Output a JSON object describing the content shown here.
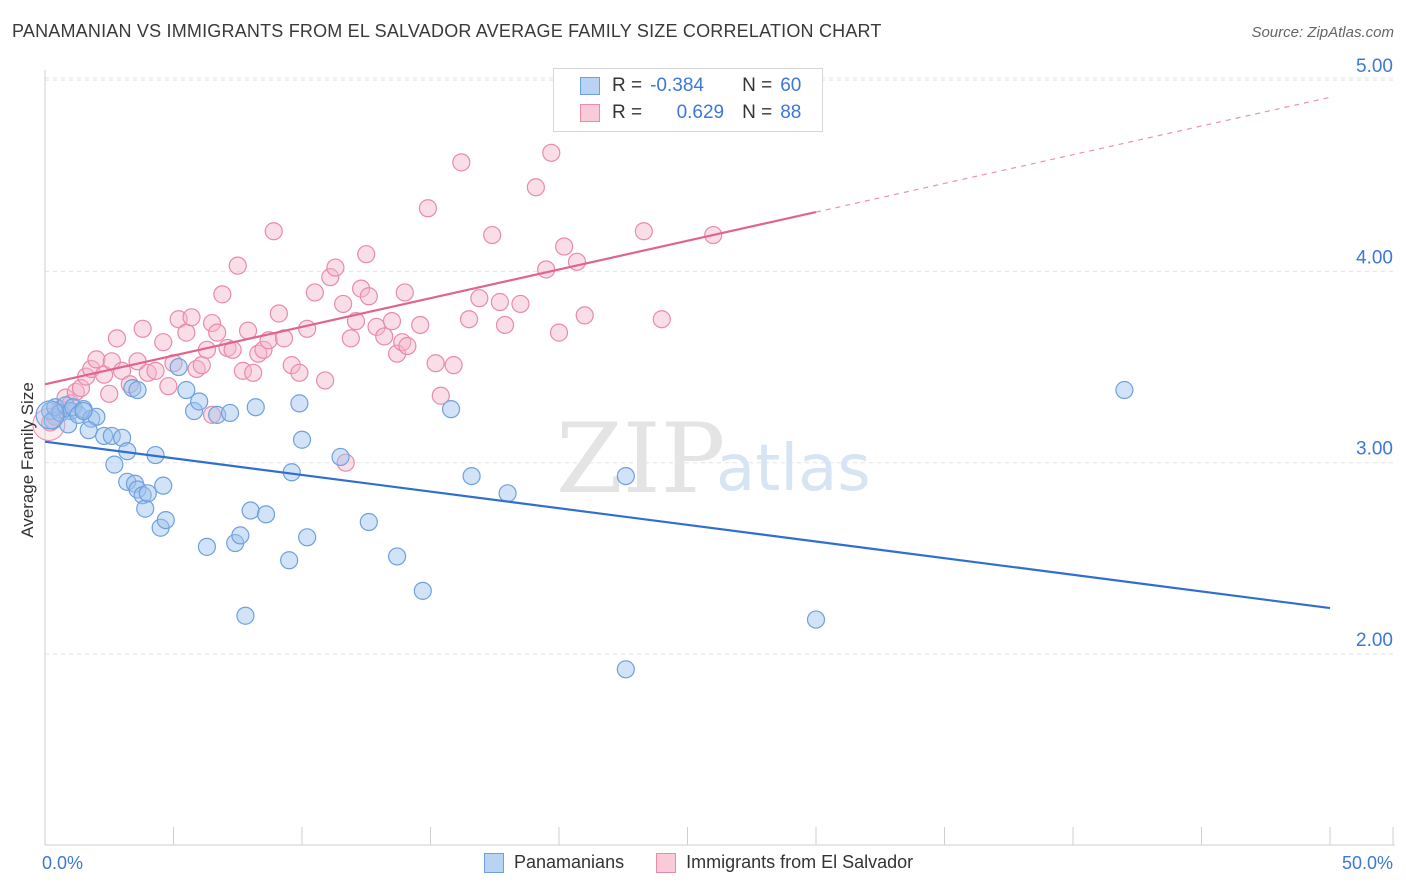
{
  "title": "PANAMANIAN VS IMMIGRANTS FROM EL SALVADOR AVERAGE FAMILY SIZE CORRELATION CHART",
  "source": "Source: ZipAtlas.com",
  "watermark": {
    "zip": "ZIP",
    "atlas": "atlas"
  },
  "legend": {
    "rows": [
      {
        "r_label": "R =",
        "r_value": "-0.384",
        "n_label": "N =",
        "n_value": "60"
      },
      {
        "r_label": "R =",
        "r_value": "0.629",
        "n_label": "N =",
        "n_value": "88"
      }
    ]
  },
  "bottom_legend": {
    "s0": "Panamanians",
    "s1": "Immigrants from El Salvador"
  },
  "colors": {
    "blue_fill": "#9cc2ee",
    "blue_stroke": "#6fa0dd",
    "blue_line": "#2e6fd0",
    "pink_fill": "#f5b6ca",
    "pink_stroke": "#e98aa9",
    "pink_line": "#e0648f",
    "tick_text": "#3c78d8",
    "grid": "#e3e3e3"
  },
  "chart_data": {
    "type": "scatter",
    "title": "PANAMANIAN VS IMMIGRANTS FROM EL SALVADOR AVERAGE FAMILY SIZE CORRELATION CHART",
    "xlabel": "",
    "ylabel": "Average Family Size",
    "xlim": [
      0,
      50
    ],
    "ylim": [
      1.0,
      5.25
    ],
    "x_ticks": [
      "0.0%",
      "50.0%"
    ],
    "y_ticks": [
      {
        "value": 2.0,
        "label": "2.00"
      },
      {
        "value": 3.0,
        "label": "3.00"
      },
      {
        "value": 4.0,
        "label": "4.00"
      },
      {
        "value": 5.0,
        "label": "5.00"
      }
    ],
    "grid": true,
    "legend_position": "top-center",
    "series": [
      {
        "name": "Panamanians",
        "color": "#9cc2ee",
        "trend": {
          "x0": 0,
          "y0": 3.11,
          "x1": 50,
          "y1": 2.24
        },
        "points": [
          [
            0.2,
            3.27
          ],
          [
            0.3,
            3.22
          ],
          [
            0.4,
            3.29
          ],
          [
            0.6,
            3.26
          ],
          [
            0.8,
            3.3
          ],
          [
            1.0,
            3.27
          ],
          [
            1.1,
            3.29
          ],
          [
            0.9,
            3.2
          ],
          [
            1.3,
            3.25
          ],
          [
            1.5,
            3.28
          ],
          [
            1.8,
            3.23
          ],
          [
            2.0,
            3.24
          ],
          [
            2.3,
            3.14
          ],
          [
            1.7,
            3.17
          ],
          [
            2.6,
            3.14
          ],
          [
            3.0,
            3.13
          ],
          [
            2.7,
            2.99
          ],
          [
            3.2,
            2.9
          ],
          [
            3.5,
            2.89
          ],
          [
            3.6,
            2.86
          ],
          [
            3.8,
            2.83
          ],
          [
            3.9,
            2.76
          ],
          [
            4.0,
            2.84
          ],
          [
            3.2,
            3.06
          ],
          [
            4.3,
            3.04
          ],
          [
            4.5,
            2.66
          ],
          [
            4.6,
            2.88
          ],
          [
            4.7,
            2.7
          ],
          [
            3.4,
            3.39
          ],
          [
            5.2,
            3.5
          ],
          [
            5.5,
            3.38
          ],
          [
            5.8,
            3.27
          ],
          [
            6.0,
            3.32
          ],
          [
            6.3,
            2.56
          ],
          [
            6.7,
            3.25
          ],
          [
            7.2,
            3.26
          ],
          [
            7.4,
            2.58
          ],
          [
            7.6,
            2.62
          ],
          [
            7.8,
            2.2
          ],
          [
            8.0,
            2.75
          ],
          [
            8.2,
            3.29
          ],
          [
            8.6,
            2.73
          ],
          [
            9.5,
            2.49
          ],
          [
            9.6,
            2.95
          ],
          [
            9.9,
            3.31
          ],
          [
            10.0,
            3.12
          ],
          [
            10.2,
            2.61
          ],
          [
            11.5,
            3.03
          ],
          [
            12.6,
            2.69
          ],
          [
            13.7,
            2.51
          ],
          [
            14.7,
            2.33
          ],
          [
            15.8,
            3.28
          ],
          [
            16.6,
            2.93
          ],
          [
            18.0,
            2.84
          ],
          [
            22.6,
            1.92
          ],
          [
            22.6,
            2.93
          ],
          [
            30.0,
            2.18
          ],
          [
            42.0,
            3.38
          ],
          [
            3.6,
            3.38
          ],
          [
            1.5,
            3.27
          ]
        ]
      },
      {
        "name": "Immigrants from El Salvador",
        "color": "#f5b6ca",
        "trend": {
          "x0": 0,
          "y0": 3.41,
          "x1": 30,
          "y1": 4.31,
          "dash_to_x": 50,
          "dash_to_y": 4.91
        },
        "points": [
          [
            0.2,
            3.21
          ],
          [
            0.4,
            3.24
          ],
          [
            0.6,
            3.28
          ],
          [
            0.8,
            3.34
          ],
          [
            1.0,
            3.31
          ],
          [
            1.2,
            3.37
          ],
          [
            1.4,
            3.39
          ],
          [
            1.6,
            3.45
          ],
          [
            1.8,
            3.49
          ],
          [
            2.0,
            3.54
          ],
          [
            2.3,
            3.46
          ],
          [
            2.6,
            3.53
          ],
          [
            2.5,
            3.36
          ],
          [
            2.8,
            3.65
          ],
          [
            3.0,
            3.48
          ],
          [
            3.3,
            3.41
          ],
          [
            3.6,
            3.53
          ],
          [
            3.8,
            3.7
          ],
          [
            4.0,
            3.47
          ],
          [
            4.3,
            3.48
          ],
          [
            4.6,
            3.63
          ],
          [
            4.8,
            3.4
          ],
          [
            5.0,
            3.52
          ],
          [
            5.2,
            3.75
          ],
          [
            5.5,
            3.68
          ],
          [
            5.7,
            3.76
          ],
          [
            5.9,
            3.49
          ],
          [
            6.1,
            3.51
          ],
          [
            6.3,
            3.59
          ],
          [
            6.5,
            3.73
          ],
          [
            6.7,
            3.68
          ],
          [
            6.9,
            3.88
          ],
          [
            7.1,
            3.6
          ],
          [
            7.3,
            3.59
          ],
          [
            7.5,
            4.03
          ],
          [
            7.7,
            3.48
          ],
          [
            7.9,
            3.69
          ],
          [
            8.1,
            3.47
          ],
          [
            8.3,
            3.57
          ],
          [
            8.5,
            3.59
          ],
          [
            8.7,
            3.64
          ],
          [
            8.9,
            4.21
          ],
          [
            9.1,
            3.78
          ],
          [
            9.3,
            3.65
          ],
          [
            9.6,
            3.51
          ],
          [
            9.9,
            3.47
          ],
          [
            10.2,
            3.7
          ],
          [
            10.5,
            3.89
          ],
          [
            10.9,
            3.43
          ],
          [
            11.1,
            3.97
          ],
          [
            11.3,
            4.02
          ],
          [
            11.6,
            3.83
          ],
          [
            11.9,
            3.65
          ],
          [
            12.1,
            3.74
          ],
          [
            12.3,
            3.91
          ],
          [
            12.6,
            3.87
          ],
          [
            12.9,
            3.71
          ],
          [
            13.2,
            3.66
          ],
          [
            13.5,
            3.74
          ],
          [
            13.7,
            3.57
          ],
          [
            13.9,
            3.63
          ],
          [
            14.1,
            3.61
          ],
          [
            14.6,
            3.72
          ],
          [
            14.9,
            4.33
          ],
          [
            15.2,
            3.52
          ],
          [
            15.4,
            3.35
          ],
          [
            15.9,
            3.51
          ],
          [
            16.2,
            4.57
          ],
          [
            16.5,
            3.75
          ],
          [
            16.9,
            3.86
          ],
          [
            17.4,
            4.19
          ],
          [
            17.7,
            3.84
          ],
          [
            17.9,
            3.72
          ],
          [
            18.5,
            3.83
          ],
          [
            19.1,
            4.44
          ],
          [
            19.5,
            4.01
          ],
          [
            19.7,
            4.62
          ],
          [
            20.0,
            3.68
          ],
          [
            20.2,
            4.13
          ],
          [
            20.7,
            4.05
          ],
          [
            21.0,
            3.77
          ],
          [
            23.3,
            4.21
          ],
          [
            24.0,
            3.75
          ],
          [
            26.0,
            4.19
          ],
          [
            14.0,
            3.89
          ],
          [
            12.5,
            4.09
          ],
          [
            11.7,
            3.0
          ],
          [
            6.5,
            3.25
          ]
        ]
      }
    ]
  }
}
